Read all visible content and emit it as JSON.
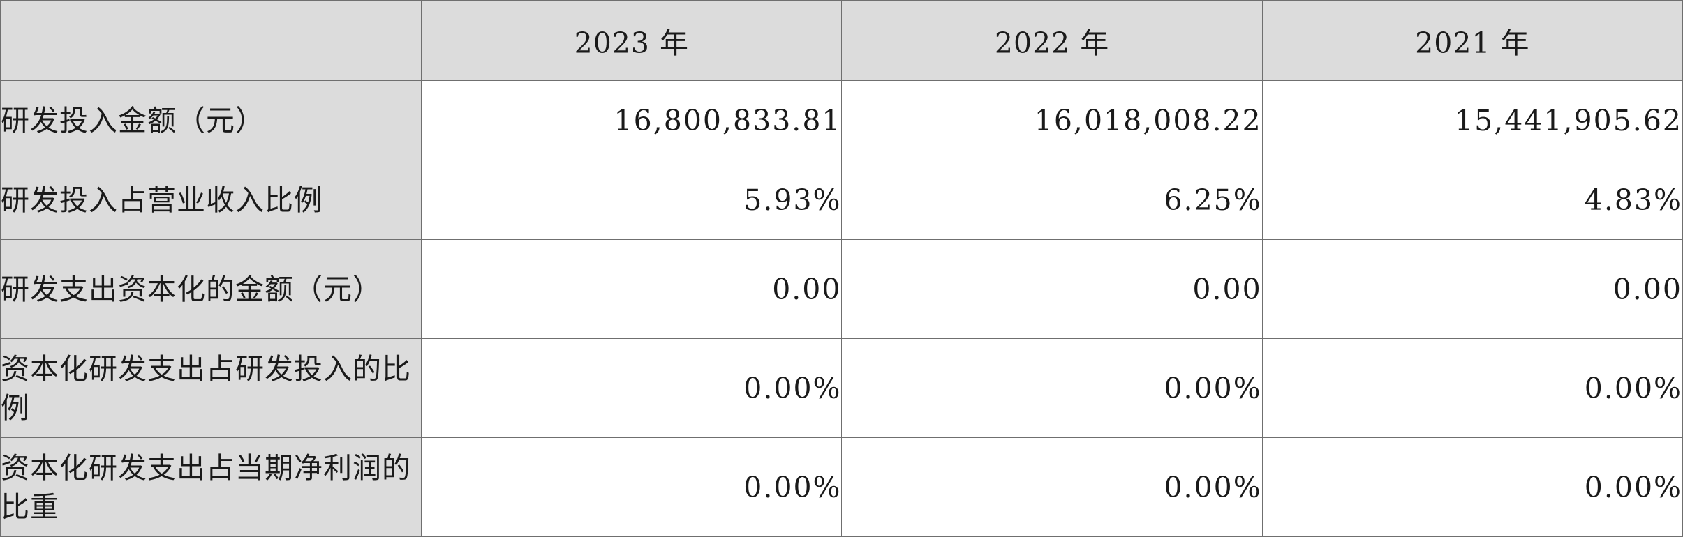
{
  "table": {
    "headers": [
      "2023 年",
      "2022 年",
      "2021 年"
    ],
    "rows": [
      {
        "label": "研发投入金额（元）",
        "values": [
          "16,800,833.81",
          "16,018,008.22",
          "15,441,905.62"
        ]
      },
      {
        "label": "研发投入占营业收入比例",
        "values": [
          "5.93%",
          "6.25%",
          "4.83%"
        ]
      },
      {
        "label": "研发支出资本化的金额（元）",
        "values": [
          "0.00",
          "0.00",
          "0.00"
        ]
      },
      {
        "label": "资本化研发支出占研发投入的比例",
        "values": [
          "0.00%",
          "0.00%",
          "0.00%"
        ]
      },
      {
        "label": "资本化研发支出占当期净利润的比重",
        "values": [
          "0.00%",
          "0.00%",
          "0.00%"
        ]
      }
    ]
  }
}
